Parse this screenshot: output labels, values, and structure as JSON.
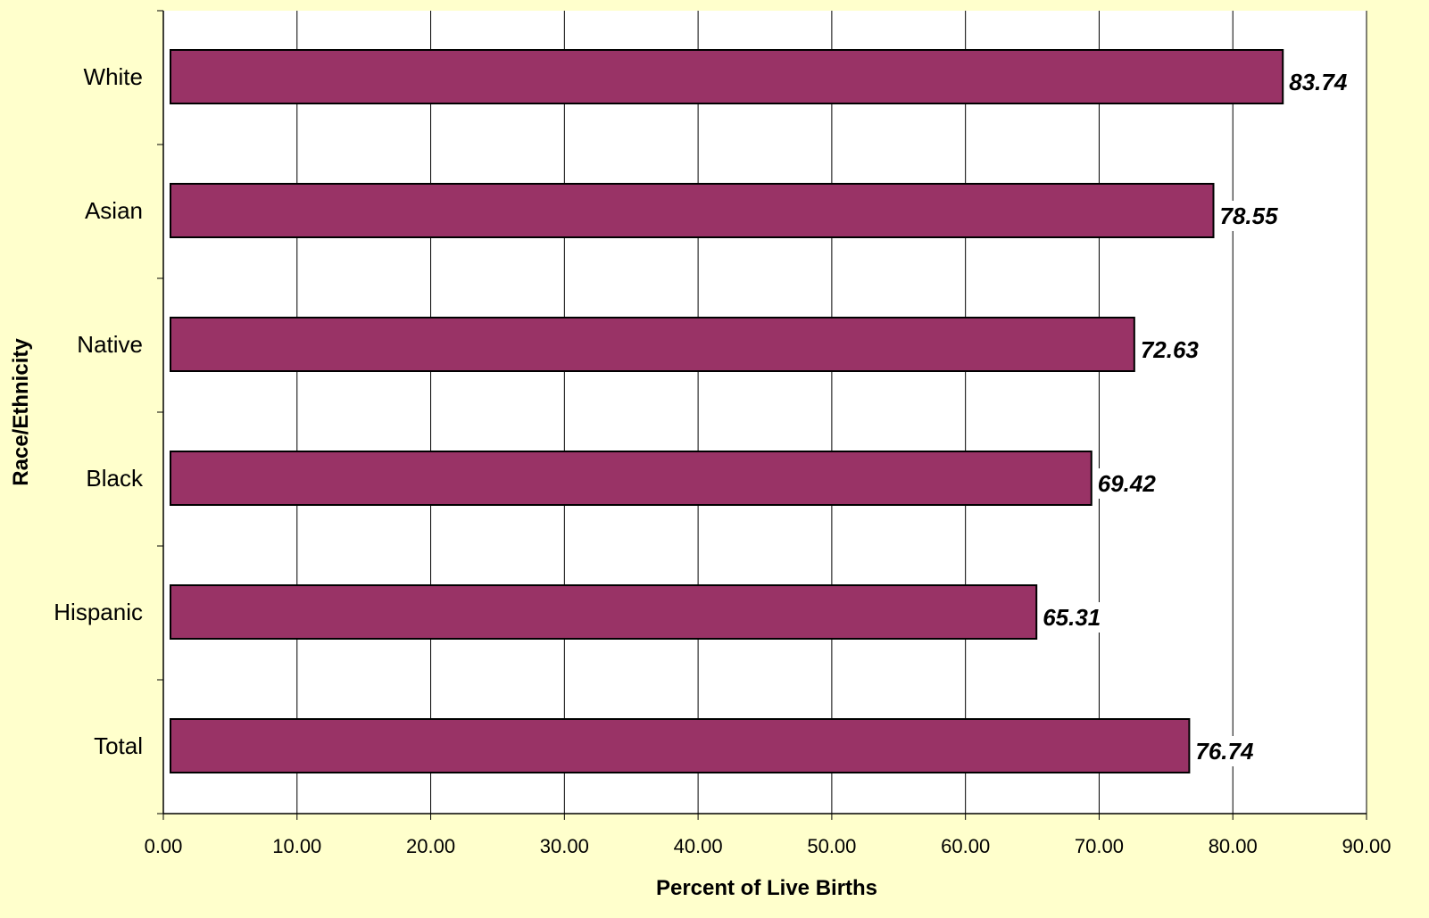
{
  "chart_data": {
    "type": "bar",
    "orientation": "horizontal",
    "categories": [
      "White",
      "Asian",
      "Native",
      "Black",
      "Hispanic",
      "Total"
    ],
    "values": [
      83.74,
      78.55,
      72.63,
      69.42,
      65.31,
      76.74
    ],
    "data_labels": [
      "83.74",
      "78.55",
      "72.63",
      "69.42",
      "65.31",
      "76.74"
    ],
    "xlabel": "Percent of Live Births",
    "ylabel": "Race/Ethnicity",
    "xlim": [
      0,
      90
    ],
    "x_ticks": [
      "0.00",
      "10.00",
      "20.00",
      "30.00",
      "40.00",
      "50.00",
      "60.00",
      "70.00",
      "80.00",
      "90.00"
    ],
    "grid": "vertical",
    "legend": "none",
    "colors": {
      "bar": "#993366",
      "plot_background": "#FFFFFF",
      "page_background": "#FFFFCC"
    }
  }
}
